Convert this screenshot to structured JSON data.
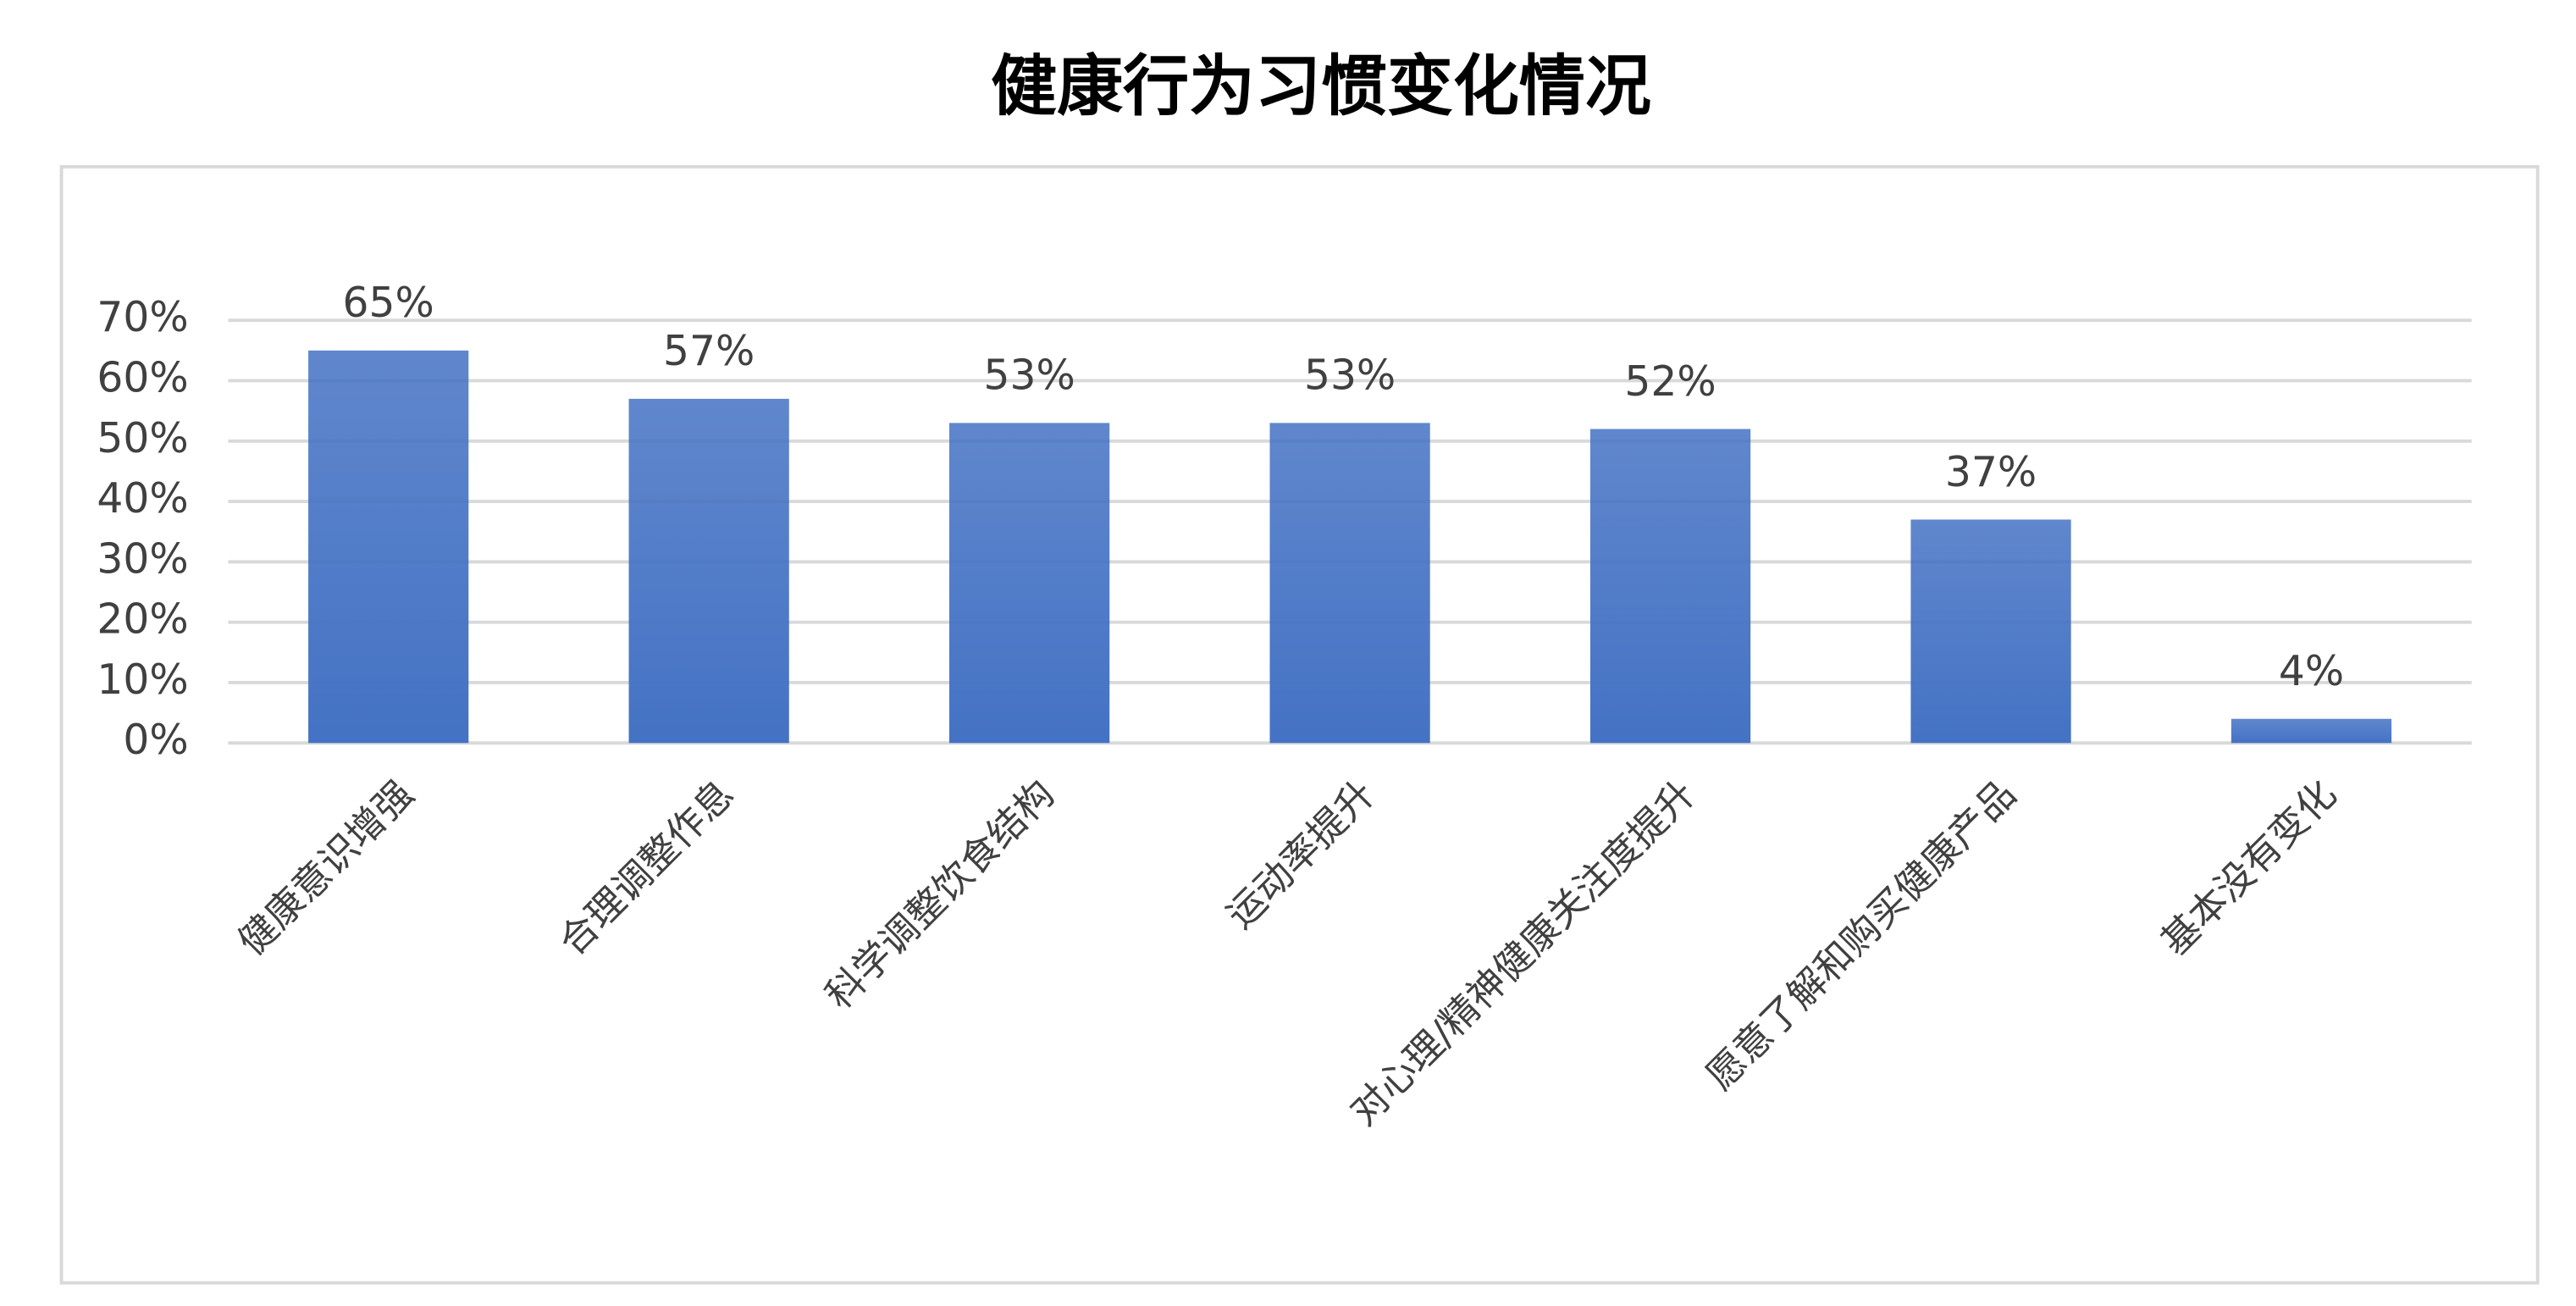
{
  "chart_data": {
    "type": "bar",
    "title": "健康行为习惯变化情况",
    "categories": [
      "健康意识增强",
      "合理调整作息",
      "科学调整饮食结构",
      "运动率提升",
      "对心理/精神健康关注度提升",
      "愿意了解和购买健康产品",
      "基本没有变化"
    ],
    "values": [
      65,
      57,
      53,
      53,
      52,
      37,
      4
    ],
    "value_labels": [
      "65%",
      "57%",
      "53%",
      "53%",
      "52%",
      "37%",
      "4%"
    ],
    "color": "#4472c4",
    "ylim": [
      0,
      70
    ],
    "yticks": [
      {
        "value": 0,
        "label": "0%"
      },
      {
        "value": 10,
        "label": "10%"
      },
      {
        "value": 20,
        "label": "20%"
      },
      {
        "value": 30,
        "label": "30%"
      },
      {
        "value": 40,
        "label": "40%"
      },
      {
        "value": 50,
        "label": "50%"
      },
      {
        "value": 60,
        "label": "60%"
      },
      {
        "value": 70,
        "label": "70%"
      }
    ],
    "grid": true
  }
}
